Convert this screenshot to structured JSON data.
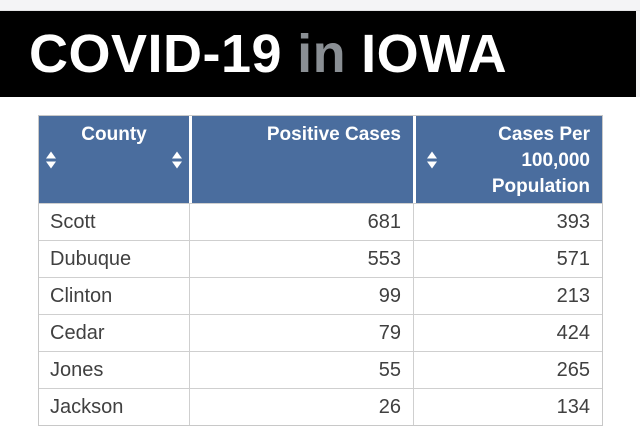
{
  "banner": {
    "title_covid": "COVID-19",
    "title_in": "in",
    "title_iowa": "IOWA",
    "background_color": "#000000",
    "title_color": "#ffffff",
    "in_color": "#8a8f94"
  },
  "table": {
    "header_background_color": "#4a6d9e",
    "header_text_color": "#ffffff",
    "body_text_color": "#404040",
    "columns": [
      {
        "label": "County"
      },
      {
        "label": "Positive Cases"
      },
      {
        "label": "Cases Per 100,000 Population"
      }
    ],
    "sort_icon": "up-down-triangles",
    "rows": [
      {
        "county": "Scott",
        "positive_cases": "681",
        "cases_per_100k": "393"
      },
      {
        "county": "Dubuque",
        "positive_cases": "553",
        "cases_per_100k": "571"
      },
      {
        "county": "Clinton",
        "positive_cases": "99",
        "cases_per_100k": "213"
      },
      {
        "county": "Cedar",
        "positive_cases": "79",
        "cases_per_100k": "424"
      },
      {
        "county": "Jones",
        "positive_cases": "55",
        "cases_per_100k": "265"
      },
      {
        "county": "Jackson",
        "positive_cases": "26",
        "cases_per_100k": "134"
      }
    ]
  }
}
